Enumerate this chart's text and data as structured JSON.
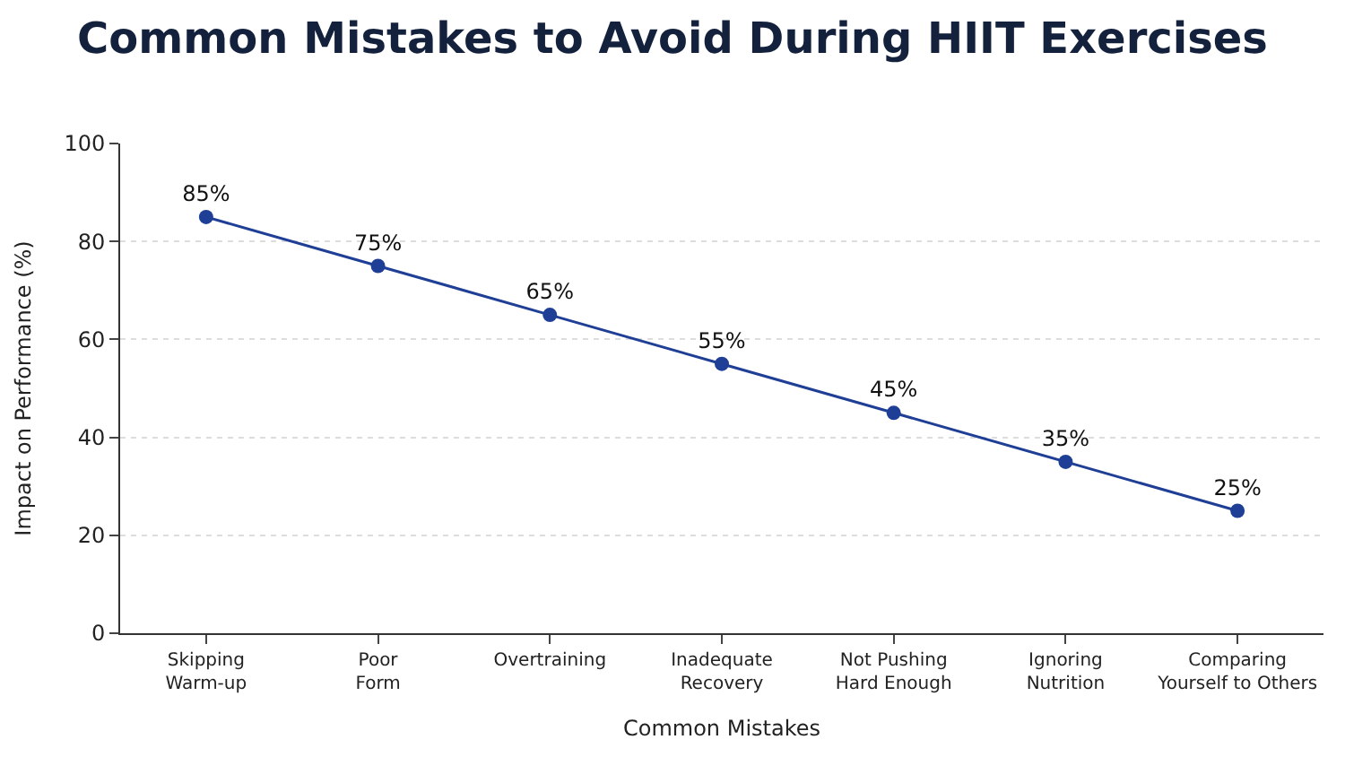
{
  "chart_data": {
    "type": "line",
    "title": "Common Mistakes to Avoid During HIIT Exercises",
    "xlabel": "Common Mistakes",
    "ylabel": "Impact on Performance (%)",
    "categories": [
      "Skipping\nWarm-up",
      "Poor\nForm",
      "Overtraining",
      "Inadequate\nRecovery",
      "Not Pushing\nHard Enough",
      "Ignoring\nNutrition",
      "Comparing\nYourself to Others"
    ],
    "series": [
      {
        "color": "#1f3f96",
        "values": [
          85,
          75,
          65,
          55,
          45,
          35,
          25
        ],
        "value_labels": [
          "85%",
          "75%",
          "65%",
          "55%",
          "45%",
          "35%",
          "25%"
        ]
      }
    ],
    "ylim": [
      0,
      100
    ],
    "yticks": [
      0,
      20,
      40,
      60,
      80,
      100
    ],
    "grid": "y",
    "marker": "circle",
    "line_style": "solid"
  }
}
